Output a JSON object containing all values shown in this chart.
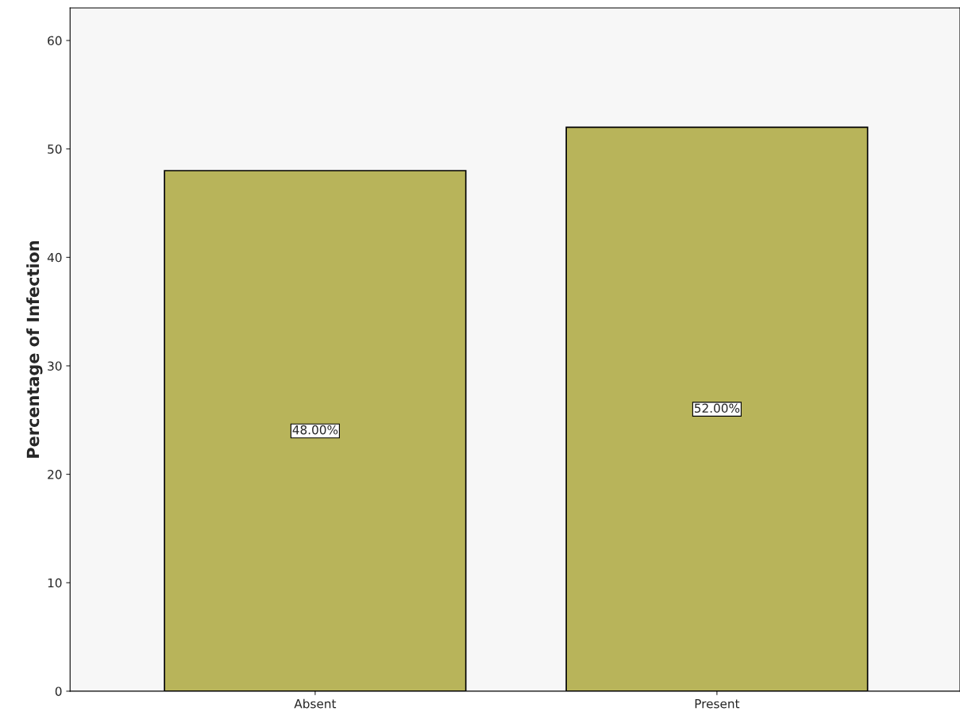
{
  "chart_data": {
    "type": "bar",
    "ylabel": "Percentage of Infection",
    "categories": [
      "Absent",
      "Present"
    ],
    "values": [
      48,
      52
    ],
    "value_labels": [
      "48.00%",
      "52.00%"
    ],
    "color": "#b8b45a",
    "ylim": [
      0,
      63
    ],
    "yticks": [
      0,
      10,
      20,
      30,
      40,
      50,
      60
    ],
    "grid": false,
    "legend": false
  }
}
